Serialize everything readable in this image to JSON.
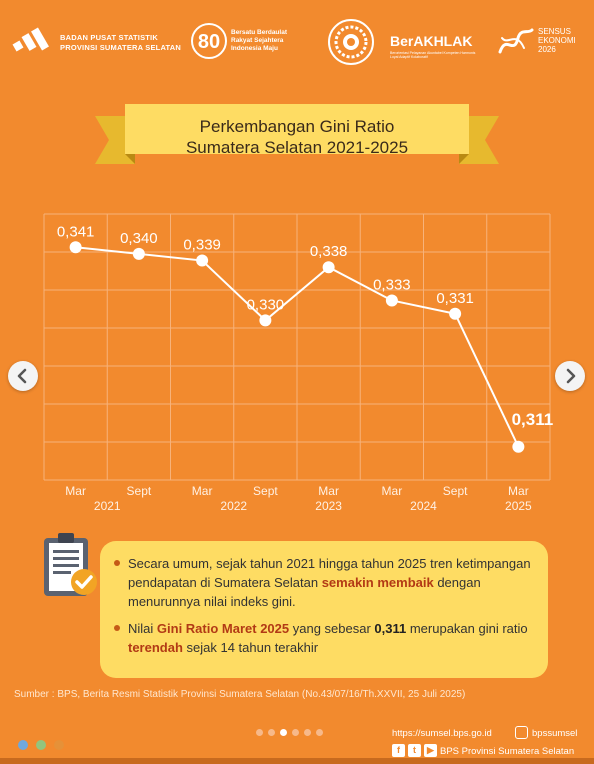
{
  "header": {
    "bps_line1": "BADAN PUSAT STATISTIK",
    "bps_line2": "PROVINSI SUMATERA SELATAN",
    "b80_number": "80",
    "b80_line1": "Bersatu Berdaulat",
    "b80_line2": "Rakyat Sejahtera",
    "b80_line3": "Indonesia Maju",
    "akhlak": "BerAKHLAK",
    "akhlak_sub": "Berorientasi Pelayanan Akuntabel Kompeten Harmonis Loyal Adaptif Kolaboratif",
    "sensus_line1": "SENSUS",
    "sensus_line2": "EKONOMI",
    "sensus_line3": "2026"
  },
  "title": {
    "line1": "Perkembangan Gini Ratio",
    "line2": "Sumatera Selatan 2021-2025"
  },
  "chart_data": {
    "type": "line",
    "categories": [
      "Mar 2021",
      "Sept 2021",
      "Mar 2022",
      "Sept 2022",
      "Mar 2023",
      "Mar 2024",
      "Sept 2024",
      "Mar 2025"
    ],
    "period_labels": [
      "Mar",
      "Sept",
      "Mar",
      "Sept",
      "Mar",
      "Mar",
      "Sept",
      "Mar"
    ],
    "year_labels": [
      "2021",
      "2022",
      "2023",
      "2024",
      "2025"
    ],
    "values": [
      0.341,
      0.34,
      0.339,
      0.33,
      0.338,
      0.333,
      0.331,
      0.311
    ],
    "value_labels": [
      "0,341",
      "0,340",
      "0,339",
      "0,330",
      "0,338",
      "0,333",
      "0,331",
      "0,311"
    ],
    "ylim": [
      0.306,
      0.346
    ],
    "grid": true,
    "line_color": "#ffffff",
    "grid_color": "#f7b27a"
  },
  "info": {
    "bullet1_a": "Secara umum, sejak tahun 2021 hingga tahun 2025 tren ketimpangan pendapatan di Sumatera Selatan ",
    "bullet1_b": "semakin membaik",
    "bullet1_c": " dengan menurunnya nilai indeks gini.",
    "bullet2_a": "Nilai ",
    "bullet2_b": "Gini Ratio Maret 2025",
    "bullet2_c": " yang sebesar ",
    "bullet2_d": "0,311",
    "bullet2_e": " merupakan gini ratio ",
    "bullet2_f": "terendah",
    "bullet2_g": " sejak 14 tahun terakhir"
  },
  "source": "Sumber : BPS, Berita Resmi Statistik Provinsi Sumatera Selatan (No.43/07/16/Th.XXVII, 25 Juli 2025)",
  "footer": {
    "url": "https://sumsel.bps.go.id",
    "instagram": "bpssumsel",
    "social_name": "BPS Provinsi Sumatera Selatan",
    "fb": "f",
    "tw": "t",
    "yt": "▶"
  },
  "carousel": {
    "dot_count": 6,
    "active_dot": 3,
    "prev_glyph": "‹",
    "next_glyph": "›"
  },
  "colors": {
    "background": "#F28A2E",
    "banner": "#FEDC63",
    "emphasis": "#B23A15"
  }
}
